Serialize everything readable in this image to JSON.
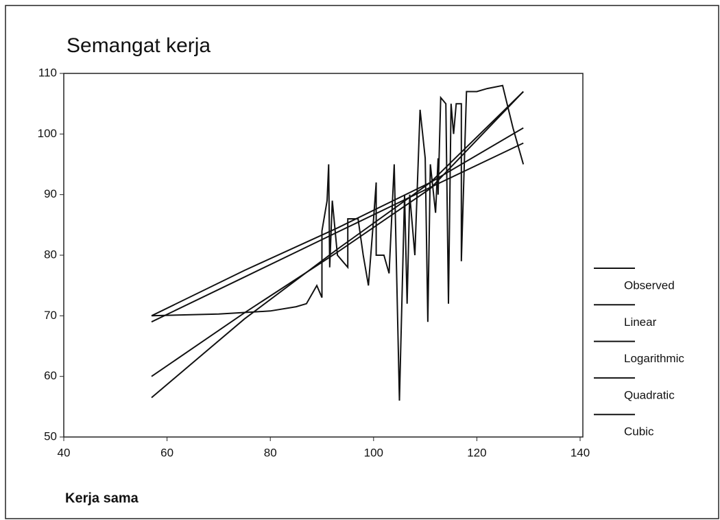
{
  "chart_data": {
    "type": "line",
    "title": "Semangat kerja",
    "x_label": "Kerja sama",
    "xlim": [
      40,
      140
    ],
    "xticks": [
      40,
      60,
      80,
      100,
      120,
      140
    ],
    "ylim": [
      50,
      110
    ],
    "yticks": [
      50,
      60,
      70,
      80,
      90,
      100,
      110
    ],
    "legend": "right",
    "series": [
      {
        "name": "Observed",
        "color": "#111111",
        "x": [
          57,
          70,
          80,
          85,
          87,
          89,
          90,
          90,
          91,
          91.3,
          91.5,
          92,
          93,
          94,
          95,
          95,
          97,
          98,
          99,
          100,
          100.5,
          100.5,
          102,
          103,
          104,
          105,
          106,
          106.5,
          107,
          108,
          109,
          110,
          110.5,
          111,
          112,
          112.5,
          112.5,
          113,
          114,
          114.5,
          115,
          115.5,
          116,
          117,
          117,
          118,
          120,
          122,
          125,
          127,
          129
        ],
        "values": [
          70,
          70.3,
          70.8,
          71.5,
          72,
          75,
          73,
          84,
          89,
          95,
          78,
          89,
          80,
          79,
          78,
          86,
          86,
          80,
          75,
          86,
          92,
          80,
          80,
          77,
          95,
          56,
          90,
          72,
          90,
          80,
          104,
          96,
          69,
          95,
          87,
          96,
          90,
          106,
          105,
          72,
          105,
          100,
          105,
          105,
          79,
          107,
          107,
          107.5,
          108,
          101,
          95
        ]
      },
      {
        "name": "Linear",
        "color": "#111111",
        "x": [
          57,
          75,
          93,
          111,
          129
        ],
        "values": [
          69,
          76.4,
          83.8,
          91.2,
          98.5
        ]
      },
      {
        "name": "Logarithmic",
        "color": "#111111",
        "x": [
          57,
          75,
          93,
          111,
          129
        ],
        "values": [
          70,
          77.5,
          84.5,
          92,
          101
        ]
      },
      {
        "name": "Quadratic",
        "color": "#111111",
        "x": [
          57,
          75,
          93,
          111,
          129
        ],
        "values": [
          60,
          70.5,
          80.5,
          91,
          107
        ]
      },
      {
        "name": "Cubic",
        "color": "#111111",
        "x": [
          57,
          75,
          93,
          111,
          129
        ],
        "values": [
          56.5,
          69.5,
          81,
          92,
          107
        ]
      }
    ]
  }
}
